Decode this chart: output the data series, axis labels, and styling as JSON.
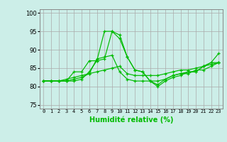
{
  "xlabel": "Humidité relative (%)",
  "bg_color": "#cceee8",
  "grid_color": "#aaaaaa",
  "line_color": "#00bb00",
  "xlim": [
    -0.5,
    23.5
  ],
  "ylim": [
    74,
    101
  ],
  "yticks": [
    75,
    80,
    85,
    90,
    95,
    100
  ],
  "xtick_labels": [
    "0",
    "1",
    "2",
    "3",
    "4",
    "5",
    "6",
    "7",
    "8",
    "9",
    "10",
    "11",
    "12",
    "13",
    "14",
    "15",
    "16",
    "17",
    "18",
    "19",
    "20",
    "21",
    "22",
    "23"
  ],
  "series": [
    [
      81.5,
      81.5,
      81.5,
      81.5,
      81.5,
      82.0,
      84.0,
      87.0,
      87.5,
      95.0,
      93.0,
      88.0,
      84.5,
      84.0,
      81.5,
      80.0,
      81.5,
      82.5,
      83.0,
      84.0,
      84.0,
      85.5,
      86.5,
      89.0
    ],
    [
      81.5,
      81.5,
      81.5,
      81.5,
      84.0,
      84.0,
      87.0,
      87.0,
      95.0,
      95.0,
      94.0,
      88.0,
      84.5,
      84.0,
      81.5,
      80.5,
      82.0,
      83.0,
      83.5,
      84.0,
      84.0,
      85.5,
      86.5,
      86.5
    ],
    [
      81.5,
      81.5,
      81.5,
      81.5,
      82.0,
      82.5,
      83.5,
      87.5,
      88.0,
      88.5,
      84.0,
      82.0,
      81.5,
      81.5,
      81.5,
      81.5,
      82.0,
      83.0,
      83.5,
      83.5,
      84.5,
      84.5,
      85.5,
      86.5
    ],
    [
      81.5,
      81.5,
      81.5,
      82.0,
      82.5,
      83.0,
      83.5,
      84.0,
      84.5,
      85.0,
      85.5,
      83.5,
      83.0,
      83.0,
      83.0,
      83.0,
      83.5,
      84.0,
      84.5,
      84.5,
      85.0,
      85.5,
      86.0,
      86.5
    ]
  ]
}
